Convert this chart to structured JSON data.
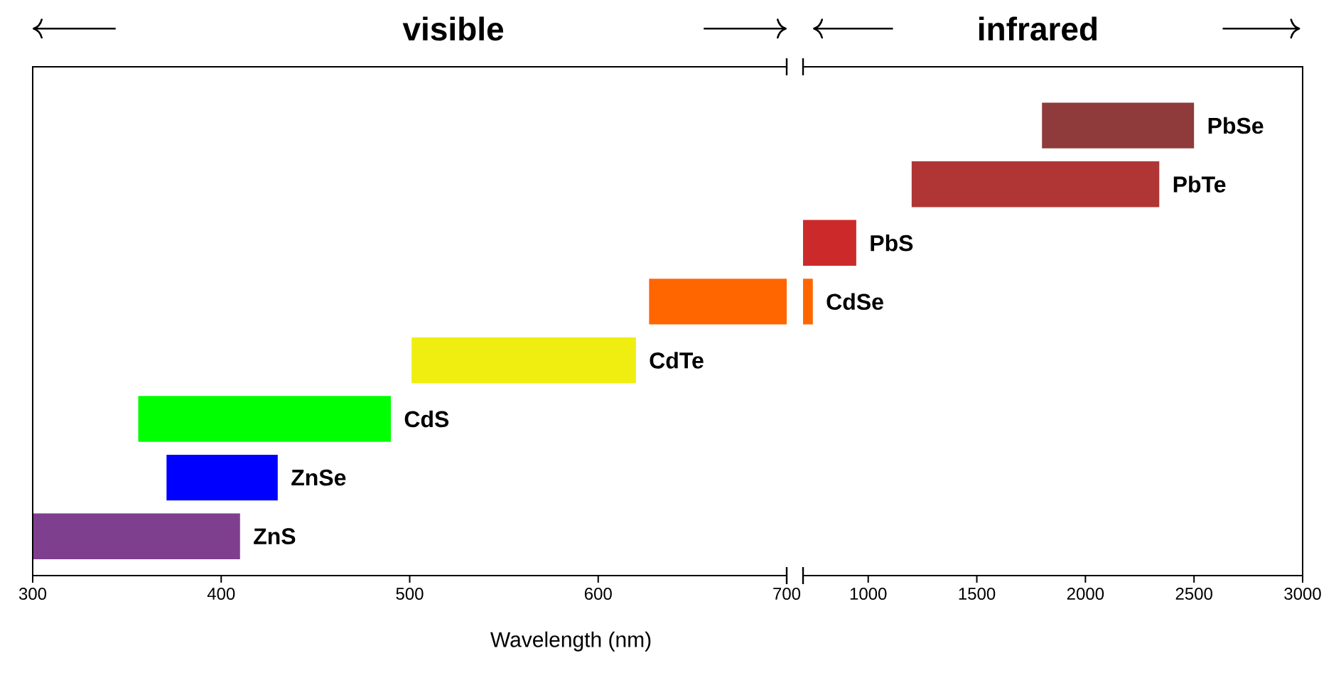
{
  "chart_data": [
    {
      "type": "bar",
      "orientation": "horizontal",
      "tick_labels": "x",
      "xlabel": "Wavelength (nm)",
      "annotations": [
        "visible"
      ],
      "categories": [
        null,
        null,
        null,
        null,
        "CdTe",
        "CdS",
        "ZnSe",
        "ZnS"
      ],
      "base": [
        null,
        null,
        null,
        627,
        501,
        356,
        371,
        300
      ],
      "values": [
        null,
        null,
        null,
        73,
        119,
        134,
        59,
        110
      ],
      "colors": [
        null,
        null,
        null,
        "#ff6600",
        "#f0ee10",
        "#00ff00",
        "#0000ff",
        "#7f3f8f"
      ],
      "xlim": [
        300,
        700
      ],
      "xticks": [
        300,
        400,
        500,
        600,
        700
      ]
    },
    {
      "type": "bar",
      "orientation": "horizontal",
      "tick_labels": "x",
      "annotations": [
        "infrared"
      ],
      "categories": [
        "PbSe",
        "PbTe",
        "PbS",
        "CdSe",
        null,
        null,
        null,
        null
      ],
      "base": [
        1800,
        1200,
        700,
        700,
        null,
        null,
        null,
        null
      ],
      "values": [
        700,
        1140,
        245,
        45,
        null,
        null,
        null,
        null
      ],
      "colors": [
        "#8f3b3b",
        "#b03636",
        "#cc2a2a",
        "#ff6600",
        null,
        null,
        null,
        null
      ],
      "xlim": [
        700,
        3000
      ],
      "xticks": [
        1000,
        1500,
        2000,
        2500,
        3000
      ]
    }
  ]
}
